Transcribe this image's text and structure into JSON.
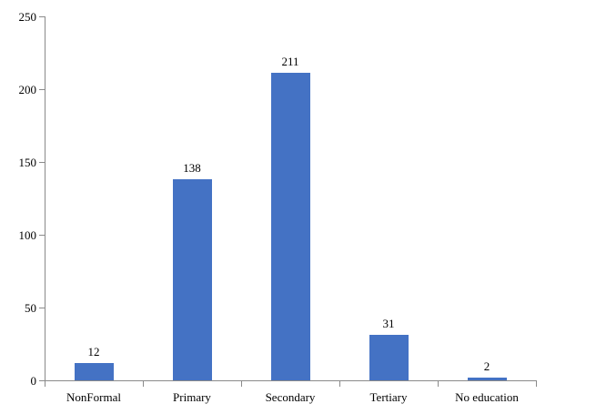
{
  "chart_data": {
    "type": "bar",
    "title": "",
    "categories": [
      "NonFormal",
      "Primary",
      "Secondary",
      "Tertiary",
      "No education"
    ],
    "values": [
      12,
      138,
      211,
      31,
      2
    ],
    "data_labels": [
      "12",
      "138",
      "211",
      "31",
      "2"
    ],
    "xlabel": "",
    "ylabel": "",
    "ylim": [
      0,
      250
    ],
    "yticks": [
      0,
      50,
      100,
      150,
      200,
      250
    ],
    "ytick_labels": [
      "0",
      "50",
      "100",
      "150",
      "200",
      "250"
    ],
    "grid": false,
    "legend": false,
    "data_labels_shown": true,
    "bar_color": "#4472C4",
    "axis_color": "#8a8a8a",
    "text_color": "#000000",
    "background_color": "#ffffff"
  }
}
